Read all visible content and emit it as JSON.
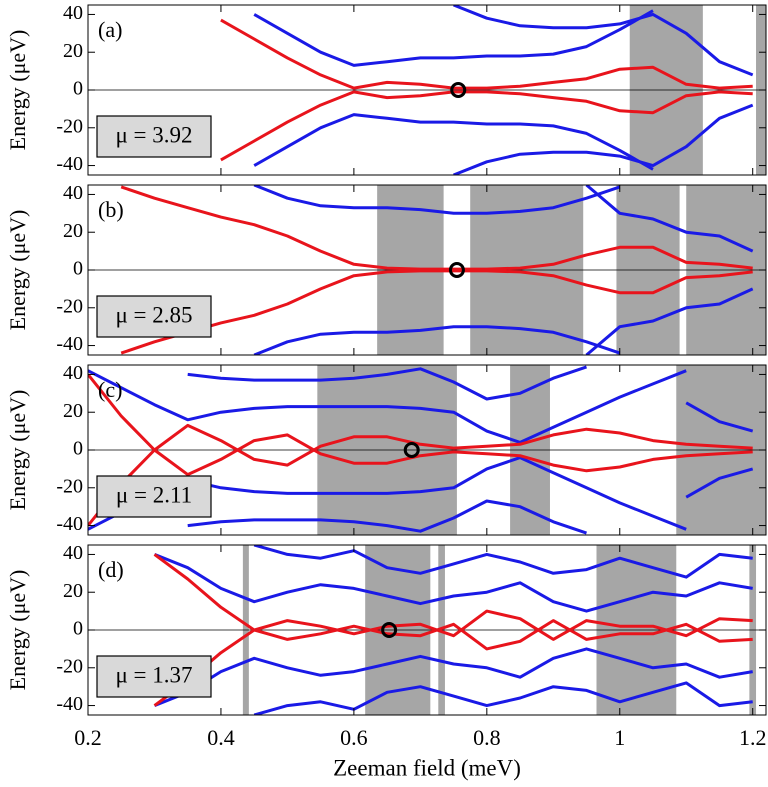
{
  "chart_data": [
    {
      "type": "line",
      "label": "(a)",
      "mu": "μ = 3.92",
      "ylabel": "Energy (μeV)",
      "xlim": [
        0.2,
        1.22
      ],
      "ylim": [
        -45,
        45
      ],
      "xticks": [
        0.2,
        0.4,
        0.6,
        0.8,
        1,
        1.2
      ],
      "yticks": [
        -40,
        -20,
        0,
        20,
        40
      ],
      "x": [
        0.2,
        0.25,
        0.3,
        0.35,
        0.4,
        0.45,
        0.5,
        0.55,
        0.6,
        0.65,
        0.7,
        0.75,
        0.8,
        0.85,
        0.9,
        0.95,
        1.0,
        1.05,
        1.1,
        1.15,
        1.2
      ],
      "shade_color": "#a6a6a6",
      "shaded": [
        [
          1.015,
          1.125
        ],
        [
          1.205,
          1.222
        ]
      ],
      "marker": {
        "x": 0.757,
        "y": 0
      },
      "series": [
        {
          "color": "#1a1ae6",
          "values": [
            null,
            null,
            null,
            null,
            null,
            40,
            30,
            20,
            13,
            15,
            17,
            17,
            18,
            18,
            19,
            23,
            32,
            42,
            null,
            null,
            null
          ]
        },
        {
          "color": "#1a1ae6",
          "values": [
            null,
            null,
            null,
            null,
            null,
            -40,
            -30,
            -20,
            -13,
            -15,
            -17,
            -17,
            -18,
            -18,
            -19,
            -23,
            -32,
            -42,
            null,
            null,
            null
          ]
        },
        {
          "color": "#1a1ae6",
          "values": [
            null,
            null,
            null,
            null,
            null,
            null,
            null,
            null,
            null,
            null,
            null,
            45,
            38,
            34,
            33,
            33,
            35,
            40,
            30,
            15,
            8
          ]
        },
        {
          "color": "#1a1ae6",
          "values": [
            null,
            null,
            null,
            null,
            null,
            null,
            null,
            null,
            null,
            null,
            null,
            -45,
            -38,
            -34,
            -33,
            -33,
            -35,
            -40,
            -30,
            -15,
            -8
          ]
        },
        {
          "color": "#e8141c",
          "values": [
            null,
            null,
            null,
            null,
            37,
            27,
            17,
            8,
            1,
            4,
            3,
            1,
            1,
            2,
            4,
            6,
            11,
            12,
            3,
            1,
            2
          ]
        },
        {
          "color": "#e8141c",
          "values": [
            null,
            null,
            null,
            null,
            -37,
            -27,
            -17,
            -8,
            -1,
            -4,
            -3,
            -1,
            -1,
            -2,
            -4,
            -6,
            -11,
            -12,
            -3,
            -1,
            -2
          ]
        }
      ]
    },
    {
      "type": "line",
      "label": "(b)",
      "mu": "μ = 2.85",
      "ylabel": "Energy (μeV)",
      "xlim": [
        0.2,
        1.22
      ],
      "ylim": [
        -45,
        45
      ],
      "xticks": [
        0.2,
        0.4,
        0.6,
        0.8,
        1,
        1.2
      ],
      "yticks": [
        -40,
        -20,
        0,
        20,
        40
      ],
      "x": [
        0.2,
        0.25,
        0.3,
        0.35,
        0.4,
        0.45,
        0.5,
        0.55,
        0.6,
        0.65,
        0.7,
        0.75,
        0.8,
        0.85,
        0.9,
        0.95,
        1.0,
        1.05,
        1.1,
        1.15,
        1.2
      ],
      "shade_color": "#a6a6a6",
      "shaded": [
        [
          0.635,
          0.735
        ],
        [
          0.775,
          0.945
        ],
        [
          0.995,
          1.09
        ],
        [
          1.1,
          1.22
        ]
      ],
      "marker": {
        "x": 0.755,
        "y": 0
      },
      "series": [
        {
          "color": "#1a1ae6",
          "values": [
            null,
            null,
            null,
            null,
            null,
            45,
            38,
            34,
            33,
            33,
            32,
            30,
            30,
            31,
            33,
            38,
            44,
            null,
            null,
            null,
            null
          ]
        },
        {
          "color": "#1a1ae6",
          "values": [
            null,
            null,
            null,
            null,
            null,
            -45,
            -38,
            -34,
            -33,
            -33,
            -32,
            -30,
            -30,
            -31,
            -33,
            -38,
            -44,
            null,
            null,
            null,
            null
          ]
        },
        {
          "color": "#1a1ae6",
          "values": [
            null,
            null,
            null,
            null,
            null,
            null,
            null,
            null,
            null,
            null,
            null,
            null,
            null,
            null,
            null,
            45,
            30,
            27,
            20,
            18,
            10
          ]
        },
        {
          "color": "#1a1ae6",
          "values": [
            null,
            null,
            null,
            null,
            null,
            null,
            null,
            null,
            null,
            null,
            null,
            null,
            null,
            null,
            null,
            -45,
            -30,
            -27,
            -20,
            -18,
            -10
          ]
        },
        {
          "color": "#e8141c",
          "values": [
            null,
            44,
            38,
            33,
            28,
            24,
            18,
            10,
            3,
            1,
            0.5,
            0.5,
            0.5,
            1,
            3,
            8,
            12,
            12,
            4,
            3,
            1
          ]
        },
        {
          "color": "#e8141c",
          "values": [
            null,
            -44,
            -38,
            -33,
            -28,
            -24,
            -18,
            -10,
            -3,
            -1,
            -0.5,
            -0.5,
            -0.5,
            -1,
            -3,
            -8,
            -12,
            -12,
            -4,
            -3,
            -1
          ]
        }
      ]
    },
    {
      "type": "line",
      "label": "(c)",
      "mu": "μ = 2.11",
      "ylabel": "Energy (μeV)",
      "xlim": [
        0.2,
        1.22
      ],
      "ylim": [
        -45,
        45
      ],
      "xticks": [
        0.2,
        0.4,
        0.6,
        0.8,
        1,
        1.2
      ],
      "yticks": [
        -40,
        -20,
        0,
        20,
        40
      ],
      "x": [
        0.2,
        0.25,
        0.3,
        0.35,
        0.4,
        0.45,
        0.5,
        0.55,
        0.6,
        0.65,
        0.7,
        0.75,
        0.8,
        0.85,
        0.9,
        0.95,
        1.0,
        1.05,
        1.1,
        1.15,
        1.2
      ],
      "shade_color": "#a6a6a6",
      "shaded": [
        [
          0.545,
          0.755
        ],
        [
          0.835,
          0.895
        ],
        [
          1.085,
          1.22
        ]
      ],
      "marker": {
        "x": 0.687,
        "y": 0
      },
      "series": [
        {
          "color": "#1a1ae6",
          "values": [
            42,
            33,
            24,
            16,
            20,
            22,
            23,
            23,
            23,
            23,
            22,
            20,
            10,
            4,
            12,
            20,
            28,
            35,
            42,
            null,
            null
          ]
        },
        {
          "color": "#1a1ae6",
          "values": [
            -42,
            -33,
            -24,
            -16,
            -20,
            -22,
            -23,
            -23,
            -23,
            -23,
            -22,
            -20,
            -10,
            -4,
            -12,
            -20,
            -28,
            -35,
            -42,
            null,
            null
          ]
        },
        {
          "color": "#1a1ae6",
          "values": [
            null,
            null,
            null,
            40,
            38,
            37,
            37,
            37,
            38,
            40,
            43,
            36,
            27,
            30,
            38,
            44,
            null,
            null,
            25,
            15,
            10
          ]
        },
        {
          "color": "#1a1ae6",
          "values": [
            null,
            null,
            null,
            -40,
            -38,
            -37,
            -37,
            -37,
            -38,
            -40,
            -43,
            -36,
            -27,
            -30,
            -38,
            -44,
            null,
            null,
            -25,
            -15,
            -10
          ]
        },
        {
          "color": "#e8141c",
          "values": [
            -40,
            -18,
            0,
            13,
            5,
            -5,
            -8,
            2,
            7,
            7,
            3,
            1,
            2,
            3,
            8,
            11,
            9,
            5,
            3,
            2,
            1
          ]
        },
        {
          "color": "#e8141c",
          "values": [
            40,
            18,
            0,
            -13,
            -5,
            5,
            8,
            -2,
            -7,
            -7,
            -3,
            -1,
            -2,
            -3,
            -8,
            -11,
            -9,
            -5,
            -3,
            -2,
            -1
          ]
        }
      ]
    },
    {
      "type": "line",
      "label": "(d)",
      "mu": "μ = 1.37",
      "ylabel": "Energy (μeV)",
      "xlabel": "Zeeman field (meV)",
      "xlim": [
        0.2,
        1.22
      ],
      "ylim": [
        -45,
        45
      ],
      "xticks": [
        0.2,
        0.4,
        0.6,
        0.8,
        1,
        1.2
      ],
      "yticks": [
        -40,
        -20,
        0,
        20,
        40
      ],
      "x": [
        0.2,
        0.25,
        0.3,
        0.35,
        0.4,
        0.45,
        0.5,
        0.55,
        0.6,
        0.65,
        0.7,
        0.75,
        0.8,
        0.85,
        0.9,
        0.95,
        1.0,
        1.05,
        1.1,
        1.15,
        1.2
      ],
      "shade_color": "#a6a6a6",
      "shaded": [
        [
          0.433,
          0.442
        ],
        [
          0.617,
          0.715
        ],
        [
          0.727,
          0.737
        ],
        [
          0.965,
          1.085
        ],
        [
          1.195,
          1.205
        ]
      ],
      "marker": {
        "x": 0.653,
        "y": 0
      },
      "series": [
        {
          "color": "#1a1ae6",
          "values": [
            null,
            null,
            40,
            33,
            22,
            15,
            20,
            24,
            22,
            18,
            14,
            18,
            20,
            25,
            15,
            10,
            15,
            20,
            18,
            25,
            22
          ]
        },
        {
          "color": "#1a1ae6",
          "values": [
            null,
            null,
            -40,
            -33,
            -22,
            -15,
            -20,
            -24,
            -22,
            -18,
            -14,
            -18,
            -20,
            -25,
            -15,
            -10,
            -15,
            -20,
            -18,
            -25,
            -22
          ]
        },
        {
          "color": "#1a1ae6",
          "values": [
            null,
            null,
            null,
            null,
            null,
            45,
            40,
            38,
            42,
            33,
            30,
            35,
            40,
            36,
            30,
            32,
            38,
            33,
            28,
            40,
            38
          ]
        },
        {
          "color": "#1a1ae6",
          "values": [
            null,
            null,
            null,
            null,
            null,
            -45,
            -40,
            -38,
            -42,
            -33,
            -30,
            -35,
            -40,
            -36,
            -30,
            -32,
            -38,
            -33,
            -28,
            -40,
            -38
          ]
        },
        {
          "color": "#e8141c",
          "values": [
            null,
            null,
            40,
            27,
            12,
            0,
            5,
            2,
            -2,
            2,
            3,
            -3,
            10,
            6,
            -5,
            5,
            2,
            2,
            -3,
            6,
            5
          ]
        },
        {
          "color": "#e8141c",
          "values": [
            null,
            null,
            -40,
            -27,
            -12,
            0,
            -5,
            -2,
            2,
            -2,
            -3,
            3,
            -10,
            -6,
            5,
            -5,
            -2,
            -2,
            3,
            -6,
            -5
          ]
        }
      ]
    }
  ]
}
